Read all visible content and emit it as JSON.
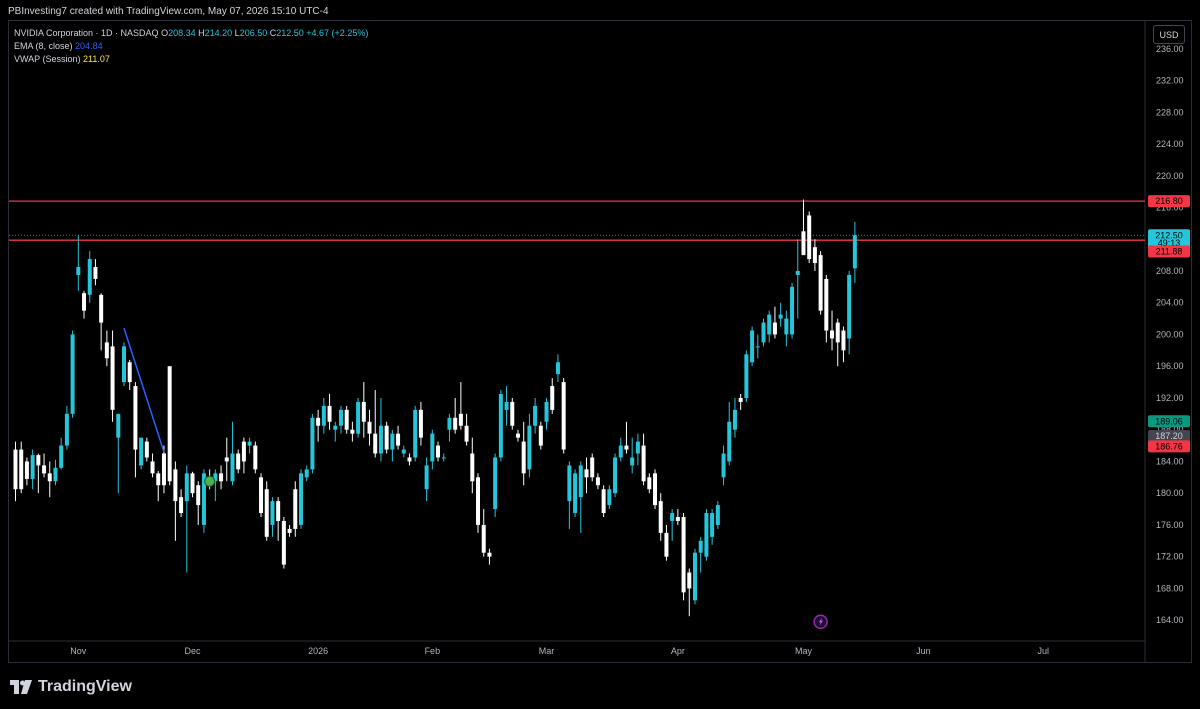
{
  "header": {
    "attribution": "PBInvesting7 created with TradingView.com, May 07, 2026 15:10 UTC-4"
  },
  "legend": {
    "symbol": "NVIDIA Corporation · 1D · NASDAQ",
    "o_label": "O",
    "o_value": "208.34",
    "h_label": "H",
    "h_value": "214.20",
    "l_label": "L",
    "l_value": "206.50",
    "c_label": "C",
    "c_value": "212.50",
    "change": "+4.67 (+2.25%)",
    "ema_label": "EMA (8, close)",
    "ema_value": "204.84",
    "vwap_label": "VWAP (Session)",
    "vwap_value": "211.07"
  },
  "currency_button": "USD",
  "footer": {
    "brand": "TradingView"
  },
  "colors": {
    "up": "#26c6da",
    "down": "#ffffff",
    "line_red": "#f23645",
    "ema": "#2962ff",
    "vwap_tag": "#089981",
    "grey_tag": "#434651",
    "price_tag": "#26c6da"
  },
  "chart_data": {
    "type": "candlestick",
    "y_ticks": [
      "236.00",
      "232.00",
      "228.00",
      "224.00",
      "220.00",
      "216.00",
      "212.00",
      "208.00",
      "204.00",
      "200.00",
      "196.00",
      "192.00",
      "188.00",
      "184.00",
      "180.00",
      "176.00",
      "172.00",
      "168.00",
      "164.00"
    ],
    "y_range": [
      161.5,
      239.5
    ],
    "x_labels": [
      {
        "label": "Nov",
        "index": 11
      },
      {
        "label": "Dec",
        "index": 31
      },
      {
        "label": "2026",
        "index": 53
      },
      {
        "label": "Feb",
        "index": 73
      },
      {
        "label": "Mar",
        "index": 93
      },
      {
        "label": "Apr",
        "index": 116
      },
      {
        "label": "May",
        "index": 138
      },
      {
        "label": "Jun",
        "index": 159
      },
      {
        "label": "Jul",
        "index": 180
      }
    ],
    "horizontal_lines": [
      216.8,
      211.88
    ],
    "price_tags": [
      {
        "label": "216.80",
        "value": 216.8,
        "color": "#f23645"
      },
      {
        "label": "212.50",
        "value": 212.5,
        "color": "#26c6da"
      },
      {
        "label": "49:13",
        "value": 211.5,
        "color": "#26c6da",
        "small": true
      },
      {
        "label": "211.88",
        "value": 210.45,
        "color": "#f23645"
      },
      {
        "label": "189.06",
        "value": 189.06,
        "color": "#089981"
      },
      {
        "label": "187.20",
        "value": 187.2,
        "color": "#434651"
      },
      {
        "label": "186.76",
        "value": 185.9,
        "color": "#f23645"
      }
    ],
    "trendline": {
      "from": {
        "index": 19,
        "value": 200.8
      },
      "to": {
        "index": 26,
        "value": 185.2
      }
    },
    "marker_points": [
      {
        "index": 34,
        "value": 181.5,
        "kind": "green-circle"
      },
      {
        "index": 141,
        "value": 163.8,
        "kind": "purple-bolt"
      }
    ],
    "candles": [
      {
        "i": 0,
        "o": 185.5,
        "h": 186.5,
        "l": 179,
        "c": 180.5
      },
      {
        "i": 1,
        "o": 185.5,
        "h": 186.5,
        "l": 180,
        "c": 180.5
      },
      {
        "i": 2,
        "o": 184,
        "h": 184.5,
        "l": 181,
        "c": 181.8
      },
      {
        "i": 3,
        "o": 181.8,
        "h": 185.5,
        "l": 180.5,
        "c": 184.8
      },
      {
        "i": 4,
        "o": 184.8,
        "h": 185,
        "l": 180,
        "c": 183.5
      },
      {
        "i": 5,
        "o": 183.5,
        "h": 185,
        "l": 182,
        "c": 182.5
      },
      {
        "i": 6,
        "o": 182.5,
        "h": 184,
        "l": 179.5,
        "c": 181.5
      },
      {
        "i": 7,
        "o": 181.5,
        "h": 184.2,
        "l": 181,
        "c": 183.2
      },
      {
        "i": 8,
        "o": 183.2,
        "h": 187,
        "l": 183,
        "c": 186
      },
      {
        "i": 9,
        "o": 186,
        "h": 191,
        "l": 185.5,
        "c": 190
      },
      {
        "i": 10,
        "o": 190,
        "h": 200.5,
        "l": 189.5,
        "c": 200
      },
      {
        "i": 11,
        "o": 207.5,
        "h": 212.5,
        "l": 205.5,
        "c": 208.5
      },
      {
        "i": 12,
        "o": 205.2,
        "h": 205.5,
        "l": 202,
        "c": 203
      },
      {
        "i": 13,
        "o": 205,
        "h": 210.5,
        "l": 204,
        "c": 209.5
      },
      {
        "i": 14,
        "o": 208.5,
        "h": 209.5,
        "l": 206.2,
        "c": 207
      },
      {
        "i": 15,
        "o": 205,
        "h": 205.2,
        "l": 198,
        "c": 201.5
      },
      {
        "i": 16,
        "o": 199,
        "h": 200.5,
        "l": 196,
        "c": 197
      },
      {
        "i": 17,
        "o": 198.5,
        "h": 200.5,
        "l": 189,
        "c": 190.5
      },
      {
        "i": 18,
        "o": 187,
        "h": 190,
        "l": 180,
        "c": 190
      },
      {
        "i": 19,
        "o": 194,
        "h": 199,
        "l": 193.5,
        "c": 198.5
      },
      {
        "i": 20,
        "o": 196.5,
        "h": 196.8,
        "l": 193,
        "c": 194
      },
      {
        "i": 21,
        "o": 193.5,
        "h": 194,
        "l": 182,
        "c": 185.5
      },
      {
        "i": 22,
        "o": 183.5,
        "h": 187,
        "l": 183,
        "c": 187
      },
      {
        "i": 23,
        "o": 186.5,
        "h": 187,
        "l": 184,
        "c": 184.5
      },
      {
        "i": 24,
        "o": 184,
        "h": 185,
        "l": 182,
        "c": 182.5
      },
      {
        "i": 25,
        "o": 182.5,
        "h": 182.8,
        "l": 179,
        "c": 181
      },
      {
        "i": 26,
        "o": 185,
        "h": 186,
        "l": 180,
        "c": 181
      },
      {
        "i": 27,
        "o": 196,
        "h": 196,
        "l": 181,
        "c": 181.5
      },
      {
        "i": 28,
        "o": 183,
        "h": 184,
        "l": 174,
        "c": 179
      },
      {
        "i": 29,
        "o": 179.5,
        "h": 180.5,
        "l": 177,
        "c": 177.5
      },
      {
        "i": 30,
        "o": 179,
        "h": 183.5,
        "l": 170,
        "c": 182.5
      },
      {
        "i": 31,
        "o": 182.5,
        "h": 182.7,
        "l": 179.5,
        "c": 180
      },
      {
        "i": 32,
        "o": 181,
        "h": 181.5,
        "l": 176,
        "c": 178.5
      },
      {
        "i": 33,
        "o": 176,
        "h": 183,
        "l": 175,
        "c": 182.5
      },
      {
        "i": 34,
        "o": 182,
        "h": 183,
        "l": 180.5,
        "c": 181
      },
      {
        "i": 35,
        "o": 181.5,
        "h": 183,
        "l": 179,
        "c": 182.5
      },
      {
        "i": 36,
        "o": 182.5,
        "h": 183.5,
        "l": 180.5,
        "c": 181.5
      },
      {
        "i": 37,
        "o": 184.5,
        "h": 187,
        "l": 181.5,
        "c": 184
      },
      {
        "i": 38,
        "o": 181.5,
        "h": 189,
        "l": 181,
        "c": 185
      },
      {
        "i": 39,
        "o": 185,
        "h": 185.5,
        "l": 182.5,
        "c": 183
      },
      {
        "i": 40,
        "o": 186.5,
        "h": 187,
        "l": 182.5,
        "c": 184
      },
      {
        "i": 41,
        "o": 186,
        "h": 187,
        "l": 185,
        "c": 186.5
      },
      {
        "i": 42,
        "o": 186,
        "h": 186.5,
        "l": 182.5,
        "c": 183
      },
      {
        "i": 43,
        "o": 182,
        "h": 182.5,
        "l": 177,
        "c": 177.5
      },
      {
        "i": 44,
        "o": 180.5,
        "h": 181.5,
        "l": 174,
        "c": 174.5
      },
      {
        "i": 45,
        "o": 176,
        "h": 179.5,
        "l": 174.5,
        "c": 179
      },
      {
        "i": 46,
        "o": 179,
        "h": 179.5,
        "l": 174,
        "c": 176.5
      },
      {
        "i": 47,
        "o": 176.5,
        "h": 177,
        "l": 170.5,
        "c": 171
      },
      {
        "i": 48,
        "o": 175.5,
        "h": 176,
        "l": 174.5,
        "c": 175
      },
      {
        "i": 49,
        "o": 180.5,
        "h": 181.5,
        "l": 174.5,
        "c": 175.5
      },
      {
        "i": 50,
        "o": 176,
        "h": 183,
        "l": 175.5,
        "c": 182.5
      },
      {
        "i": 51,
        "o": 182,
        "h": 183.5,
        "l": 181.5,
        "c": 183
      },
      {
        "i": 52,
        "o": 183,
        "h": 190,
        "l": 182.5,
        "c": 189.5
      },
      {
        "i": 53,
        "o": 189.5,
        "h": 190.5,
        "l": 186.5,
        "c": 188.5
      },
      {
        "i": 54,
        "o": 188.5,
        "h": 192,
        "l": 187.5,
        "c": 191
      },
      {
        "i": 55,
        "o": 191,
        "h": 192.5,
        "l": 188,
        "c": 189
      },
      {
        "i": 56,
        "o": 188,
        "h": 189,
        "l": 186.5,
        "c": 188.5
      },
      {
        "i": 57,
        "o": 188.5,
        "h": 191,
        "l": 187.5,
        "c": 190.5
      },
      {
        "i": 58,
        "o": 190.5,
        "h": 191,
        "l": 187.5,
        "c": 188
      },
      {
        "i": 59,
        "o": 188,
        "h": 189,
        "l": 186.5,
        "c": 187.5
      },
      {
        "i": 60,
        "o": 187.5,
        "h": 192,
        "l": 187,
        "c": 191.5
      },
      {
        "i": 61,
        "o": 191.5,
        "h": 194,
        "l": 187,
        "c": 189
      },
      {
        "i": 62,
        "o": 189,
        "h": 190.5,
        "l": 186,
        "c": 187.5
      },
      {
        "i": 63,
        "o": 187.5,
        "h": 193,
        "l": 184.5,
        "c": 185
      },
      {
        "i": 64,
        "o": 185,
        "h": 192,
        "l": 184,
        "c": 188.5
      },
      {
        "i": 65,
        "o": 188.5,
        "h": 189,
        "l": 185,
        "c": 185.5
      },
      {
        "i": 66,
        "o": 185.5,
        "h": 188,
        "l": 184,
        "c": 187.5
      },
      {
        "i": 67,
        "o": 187.5,
        "h": 188.5,
        "l": 185.5,
        "c": 186
      },
      {
        "i": 68,
        "o": 185,
        "h": 186,
        "l": 184.5,
        "c": 185.5
      },
      {
        "i": 69,
        "o": 184.5,
        "h": 185,
        "l": 183.5,
        "c": 184
      },
      {
        "i": 70,
        "o": 184.5,
        "h": 191,
        "l": 184,
        "c": 190.5
      },
      {
        "i": 71,
        "o": 190.5,
        "h": 191.5,
        "l": 186,
        "c": 187
      },
      {
        "i": 72,
        "o": 180.5,
        "h": 184.5,
        "l": 179,
        "c": 183.5
      },
      {
        "i": 73,
        "o": 184,
        "h": 188,
        "l": 183,
        "c": 187.5
      },
      {
        "i": 74,
        "o": 186,
        "h": 186.5,
        "l": 184,
        "c": 184.5
      },
      {
        "i": 75,
        "o": 184.5,
        "h": 185,
        "l": 184,
        "c": 184.5
      },
      {
        "i": 76,
        "o": 188,
        "h": 190,
        "l": 186.5,
        "c": 189.5
      },
      {
        "i": 77,
        "o": 189.5,
        "h": 192,
        "l": 187.5,
        "c": 188
      },
      {
        "i": 78,
        "o": 190,
        "h": 194,
        "l": 188,
        "c": 188.5
      },
      {
        "i": 79,
        "o": 188.5,
        "h": 190,
        "l": 186,
        "c": 186.5
      },
      {
        "i": 80,
        "o": 185,
        "h": 187,
        "l": 180,
        "c": 181.5
      },
      {
        "i": 81,
        "o": 182,
        "h": 182.5,
        "l": 175,
        "c": 176
      },
      {
        "i": 82,
        "o": 176,
        "h": 178,
        "l": 172,
        "c": 172.5
      },
      {
        "i": 83,
        "o": 172.5,
        "h": 173,
        "l": 171,
        "c": 172
      },
      {
        "i": 84,
        "o": 178,
        "h": 185,
        "l": 177,
        "c": 184.5
      },
      {
        "i": 85,
        "o": 184.5,
        "h": 193,
        "l": 184,
        "c": 192.5
      },
      {
        "i": 86,
        "o": 190.5,
        "h": 193.5,
        "l": 188.5,
        "c": 191.5
      },
      {
        "i": 87,
        "o": 191.5,
        "h": 192,
        "l": 188,
        "c": 188.5
      },
      {
        "i": 88,
        "o": 187.5,
        "h": 188,
        "l": 186.5,
        "c": 187
      },
      {
        "i": 89,
        "o": 186.5,
        "h": 189,
        "l": 181,
        "c": 182.5
      },
      {
        "i": 90,
        "o": 183,
        "h": 190,
        "l": 182,
        "c": 188.5
      },
      {
        "i": 91,
        "o": 188.5,
        "h": 192,
        "l": 187.5,
        "c": 191
      },
      {
        "i": 92,
        "o": 188.5,
        "h": 189,
        "l": 185.5,
        "c": 186
      },
      {
        "i": 93,
        "o": 189,
        "h": 192,
        "l": 188,
        "c": 191.5
      },
      {
        "i": 94,
        "o": 193.5,
        "h": 194.5,
        "l": 190,
        "c": 190.5
      },
      {
        "i": 95,
        "o": 195,
        "h": 197.5,
        "l": 194,
        "c": 196.5
      },
      {
        "i": 96,
        "o": 194,
        "h": 194.5,
        "l": 185,
        "c": 185.5
      },
      {
        "i": 97,
        "o": 179,
        "h": 184,
        "l": 175.5,
        "c": 183.5
      },
      {
        "i": 98,
        "o": 177.5,
        "h": 183,
        "l": 177,
        "c": 182.5
      },
      {
        "i": 99,
        "o": 179.5,
        "h": 184,
        "l": 175,
        "c": 183.5
      },
      {
        "i": 100,
        "o": 183,
        "h": 184.5,
        "l": 180,
        "c": 182
      },
      {
        "i": 101,
        "o": 184.5,
        "h": 185,
        "l": 181.5,
        "c": 182
      },
      {
        "i": 102,
        "o": 182,
        "h": 182.5,
        "l": 180.5,
        "c": 181
      },
      {
        "i": 103,
        "o": 180.5,
        "h": 181,
        "l": 177,
        "c": 177.5
      },
      {
        "i": 104,
        "o": 178.5,
        "h": 181,
        "l": 178,
        "c": 180.5
      },
      {
        "i": 105,
        "o": 180,
        "h": 185,
        "l": 179.5,
        "c": 184.5
      },
      {
        "i": 106,
        "o": 184.5,
        "h": 187,
        "l": 184,
        "c": 186
      },
      {
        "i": 107,
        "o": 186,
        "h": 189,
        "l": 185,
        "c": 185.5
      },
      {
        "i": 108,
        "o": 183.5,
        "h": 187,
        "l": 182.5,
        "c": 184.5
      },
      {
        "i": 109,
        "o": 185,
        "h": 187.5,
        "l": 183.5,
        "c": 186.5
      },
      {
        "i": 110,
        "o": 186,
        "h": 187.5,
        "l": 181,
        "c": 181.5
      },
      {
        "i": 111,
        "o": 182,
        "h": 182.5,
        "l": 180,
        "c": 180.5
      },
      {
        "i": 112,
        "o": 182.5,
        "h": 183,
        "l": 178,
        "c": 178.5
      },
      {
        "i": 113,
        "o": 179,
        "h": 180,
        "l": 174,
        "c": 175
      },
      {
        "i": 114,
        "o": 175,
        "h": 176,
        "l": 171.5,
        "c": 172
      },
      {
        "i": 115,
        "o": 176.5,
        "h": 178,
        "l": 174,
        "c": 177.5
      },
      {
        "i": 116,
        "o": 177,
        "h": 178,
        "l": 176,
        "c": 176.5
      },
      {
        "i": 117,
        "o": 177,
        "h": 177.5,
        "l": 166.5,
        "c": 167.5
      },
      {
        "i": 118,
        "o": 170,
        "h": 170.5,
        "l": 164.5,
        "c": 168
      },
      {
        "i": 119,
        "o": 166.5,
        "h": 173,
        "l": 166,
        "c": 172.5
      },
      {
        "i": 120,
        "o": 172.5,
        "h": 174.5,
        "l": 170,
        "c": 174
      },
      {
        "i": 121,
        "o": 172,
        "h": 178,
        "l": 171.5,
        "c": 177.5
      },
      {
        "i": 122,
        "o": 174.5,
        "h": 178,
        "l": 173.5,
        "c": 177.5
      },
      {
        "i": 123,
        "o": 176,
        "h": 179,
        "l": 175.5,
        "c": 178.5
      },
      {
        "i": 124,
        "o": 182,
        "h": 186,
        "l": 181,
        "c": 185
      },
      {
        "i": 125,
        "o": 184,
        "h": 191.5,
        "l": 183.5,
        "c": 189
      },
      {
        "i": 126,
        "o": 188,
        "h": 192,
        "l": 187,
        "c": 190.5
      },
      {
        "i": 127,
        "o": 192,
        "h": 192.5,
        "l": 190.5,
        "c": 191.5
      },
      {
        "i": 128,
        "o": 192,
        "h": 198,
        "l": 191.5,
        "c": 197.5
      },
      {
        "i": 129,
        "o": 196.5,
        "h": 201,
        "l": 196,
        "c": 200.5
      },
      {
        "i": 130,
        "o": 198.5,
        "h": 200,
        "l": 197,
        "c": 198.5
      },
      {
        "i": 131,
        "o": 199,
        "h": 202,
        "l": 198.5,
        "c": 201.5
      },
      {
        "i": 132,
        "o": 200,
        "h": 203,
        "l": 199,
        "c": 202.5
      },
      {
        "i": 133,
        "o": 201.5,
        "h": 203.5,
        "l": 199.5,
        "c": 200
      },
      {
        "i": 134,
        "o": 202,
        "h": 204,
        "l": 201,
        "c": 202.5
      },
      {
        "i": 135,
        "o": 200,
        "h": 203,
        "l": 198.5,
        "c": 202
      },
      {
        "i": 136,
        "o": 200,
        "h": 206.5,
        "l": 199.5,
        "c": 206
      },
      {
        "i": 137,
        "o": 207.5,
        "h": 212,
        "l": 202,
        "c": 208
      },
      {
        "i": 138,
        "o": 213,
        "h": 217,
        "l": 210,
        "c": 210
      },
      {
        "i": 139,
        "o": 215,
        "h": 215.5,
        "l": 209,
        "c": 209.5
      },
      {
        "i": 140,
        "o": 211,
        "h": 212,
        "l": 208,
        "c": 209
      },
      {
        "i": 141,
        "o": 210,
        "h": 210.5,
        "l": 202.5,
        "c": 203
      },
      {
        "i": 142,
        "o": 207,
        "h": 207.5,
        "l": 199,
        "c": 200.5
      },
      {
        "i": 143,
        "o": 200.5,
        "h": 203,
        "l": 198,
        "c": 199.5
      },
      {
        "i": 144,
        "o": 201.5,
        "h": 202,
        "l": 196,
        "c": 199
      },
      {
        "i": 145,
        "o": 200.5,
        "h": 201,
        "l": 196.5,
        "c": 198
      },
      {
        "i": 146,
        "o": 199.5,
        "h": 208,
        "l": 197.5,
        "c": 207.5
      },
      {
        "i": 147,
        "o": 208.34,
        "h": 214.2,
        "l": 206.5,
        "c": 212.5
      }
    ]
  }
}
